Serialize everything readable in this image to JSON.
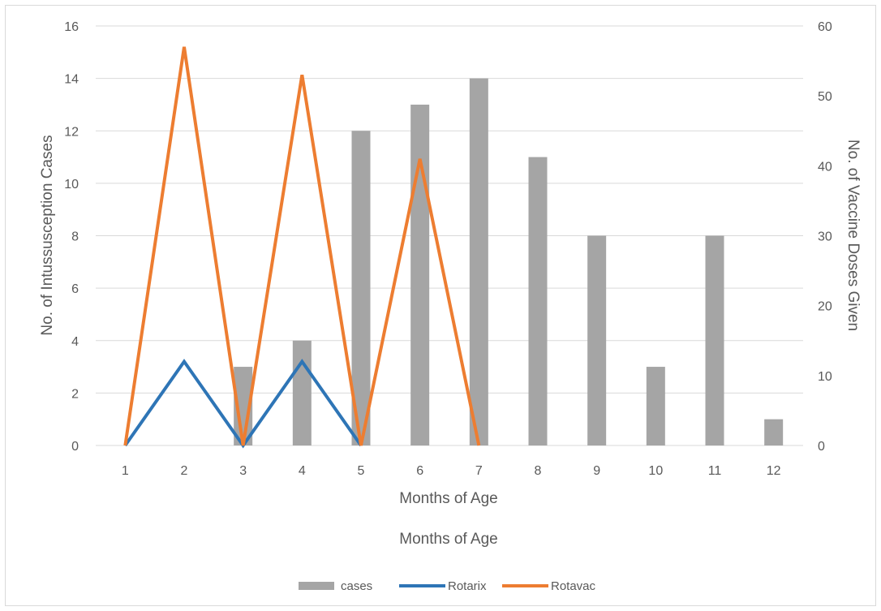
{
  "chart_data": {
    "type": "bar",
    "categories": [
      "1",
      "2",
      "3",
      "4",
      "5",
      "6",
      "7",
      "8",
      "9",
      "10",
      "11",
      "12"
    ],
    "xlabel": "Months of Age",
    "xlabel_secondary": "Months of Age",
    "ylabel": "No. of Intussusception Cases",
    "y2label": "No. of Vaccine Doses Given",
    "ylim": [
      0,
      16
    ],
    "yticks": [
      0,
      2,
      4,
      6,
      8,
      10,
      12,
      14,
      16
    ],
    "y2lim": [
      0,
      60
    ],
    "y2ticks": [
      0,
      10,
      20,
      30,
      40,
      50,
      60
    ],
    "grid": true,
    "legend_position": "bottom",
    "series": [
      {
        "name": "cases",
        "type": "bar",
        "axis": "left",
        "color": "#a5a5a5",
        "values": [
          0,
          0,
          3,
          4,
          12,
          13,
          14,
          11,
          8,
          3,
          8,
          1
        ]
      },
      {
        "name": "Rotarix",
        "type": "line",
        "axis": "right",
        "color": "#2e75b6",
        "values": [
          0,
          12,
          0,
          12,
          0,
          null,
          null,
          null,
          null,
          null,
          null,
          null
        ]
      },
      {
        "name": "Rotavac",
        "type": "line",
        "axis": "right",
        "color": "#ed7d31",
        "values": [
          0,
          57,
          0,
          53,
          0,
          41,
          0,
          null,
          null,
          null,
          null,
          null
        ]
      }
    ]
  }
}
